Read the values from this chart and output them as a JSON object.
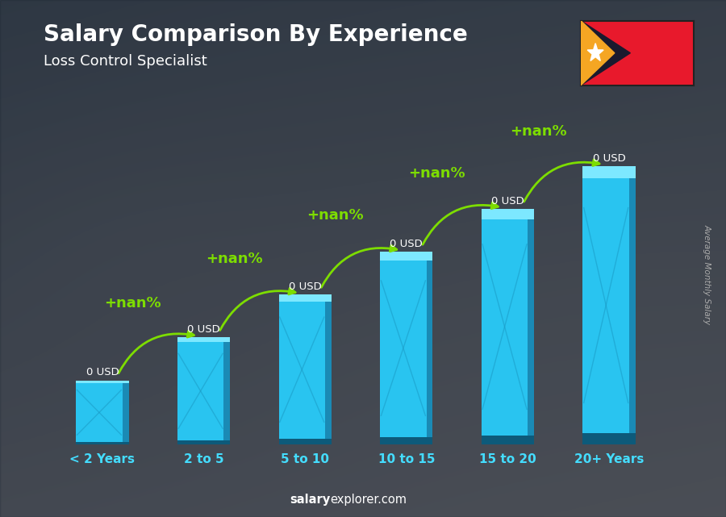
{
  "title": "Salary Comparison By Experience",
  "subtitle": "Loss Control Specialist",
  "categories": [
    "< 2 Years",
    "2 to 5",
    "5 to 10",
    "10 to 15",
    "15 to 20",
    "20+ Years"
  ],
  "values": [
    1.5,
    2.5,
    3.5,
    4.5,
    5.5,
    6.5
  ],
  "bar_face_color": "#29c4f0",
  "bar_top_color": "#7de8ff",
  "bar_side_color": "#1a8ab5",
  "bar_bottom_shadow": "#0d5a7a",
  "xlabel_color": "#44ddff",
  "title_color": "#ffffff",
  "subtitle_color": "#ffffff",
  "ylabel_text": "Average Monthly Salary",
  "annotation_values": [
    "0 USD",
    "0 USD",
    "0 USD",
    "0 USD",
    "0 USD",
    "0 USD"
  ],
  "annotation_pct": [
    "+nan%",
    "+nan%",
    "+nan%",
    "+nan%",
    "+nan%"
  ],
  "footer_bold": "salary",
  "footer_normal": "explorer.com",
  "bg_color": "#2a3540",
  "arrow_color": "#7ddd00",
  "pct_color": "#7ddd00",
  "flag_red": "#e8192c",
  "flag_black": "#1a1a2e",
  "flag_yellow": "#f5a623"
}
